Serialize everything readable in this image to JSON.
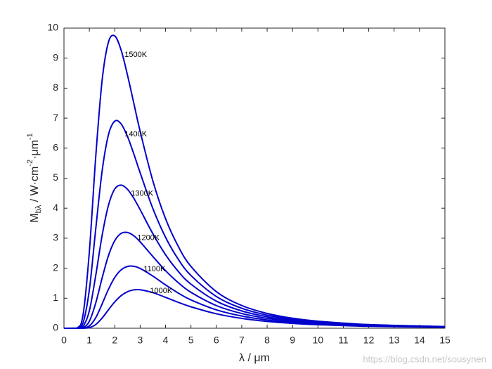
{
  "chart_data": {
    "type": "line",
    "ylabel": [
      "M",
      "bλ",
      " / W·cm",
      "-2",
      "·μm",
      "-1"
    ],
    "xlabel": "λ / μm",
    "watermark": "https://blog.csdn.net/sousynen",
    "x": [
      0,
      0.5,
      0.75,
      1,
      1.25,
      1.5,
      1.75,
      2,
      2.25,
      2.5,
      2.75,
      3,
      3.5,
      4,
      4.5,
      5,
      6,
      7,
      8,
      9,
      10,
      12,
      15
    ],
    "series": [
      {
        "name": "1500K",
        "color": "#0000cc",
        "values": [
          0,
          0.0056,
          0.44,
          2.554,
          5.7,
          8.24,
          9.53,
          9.74,
          9.27,
          8.44,
          7.5,
          6.56,
          4.91,
          3.65,
          2.73,
          2.06,
          1.219,
          0.758,
          0.493,
          0.333,
          0.233,
          0.123,
          0.055
        ]
      },
      {
        "name": "1400K",
        "color": "#0000cc",
        "values": [
          0,
          0.0014,
          0.177,
          1.284,
          3.3,
          5.22,
          6.44,
          6.9,
          6.81,
          6.39,
          5.81,
          5.18,
          3.99,
          3.03,
          2.3,
          1.758,
          1.059,
          0.666,
          0.437,
          0.297,
          0.208,
          0.111,
          0.05
        ]
      },
      {
        "name": "1300K",
        "color": "#0000cc",
        "values": [
          0,
          0.0003,
          0.0616,
          0.583,
          1.75,
          3.08,
          4.09,
          4.64,
          4.77,
          4.63,
          4.33,
          3.95,
          3.15,
          2.45,
          1.895,
          1.469,
          0.903,
          0.577,
          0.382,
          0.262,
          0.185,
          0.0993,
          0.0451
        ]
      },
      {
        "name": "1200K",
        "color": "#0000cc",
        "values": [
          0,
          0,
          0.018,
          0.232,
          0.837,
          1.665,
          2.415,
          2.919,
          3.16,
          3.19,
          3.08,
          2.88,
          2.39,
          1.919,
          1.519,
          1.197,
          0.755,
          0.49,
          0.328,
          0.227,
          0.1615,
          0.0876,
          0.0403
        ]
      },
      {
        "name": "1100K",
        "color": "#0000cc",
        "values": [
          0,
          0,
          0.0042,
          0.078,
          0.349,
          0.804,
          1.294,
          1.692,
          1.945,
          2.058,
          2.063,
          1.992,
          1.738,
          1.444,
          1.172,
          0.944,
          0.613,
          0.406,
          0.276,
          0.193,
          0.1386,
          0.0762,
          0.0354
        ]
      },
      {
        "name": "1000K",
        "color": "#0000cc",
        "values": [
          0,
          0,
          0.0007,
          0.0211,
          0.123,
          0.336,
          0.613,
          0.878,
          1.085,
          1.217,
          1.278,
          1.283,
          1.187,
          1.029,
          0.864,
          0.714,
          0.481,
          0.327,
          0.2266,
          0.1605,
          0.1163,
          0.0649,
          0.0306
        ]
      }
    ],
    "xlim": [
      0,
      15
    ],
    "xticks": [
      0,
      1,
      2,
      3,
      4,
      5,
      6,
      7,
      8,
      9,
      10,
      11,
      12,
      13,
      14,
      15
    ],
    "ylim": [
      0,
      10
    ],
    "yticks": [
      0,
      1,
      2,
      3,
      4,
      5,
      6,
      7,
      8,
      9,
      10
    ],
    "grid": false
  }
}
